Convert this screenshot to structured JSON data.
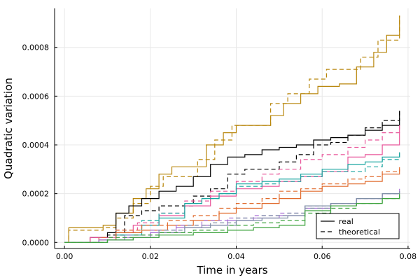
{
  "chart_data": {
    "type": "line",
    "title": "",
    "xlabel": "Time in years",
    "ylabel": "Quadratic variation",
    "xlim": [
      -0.0023,
      0.0805
    ],
    "ylim": [
      -2.5e-05,
      0.00096
    ],
    "xticks": [
      0.0,
      0.02,
      0.04,
      0.06,
      0.08
    ],
    "xtick_labels": [
      "0.00",
      "0.02",
      "0.04",
      "0.06",
      "0.08"
    ],
    "yticks": [
      0.0,
      0.0002,
      0.0004,
      0.0006,
      0.0008
    ],
    "ytick_labels": [
      "0.0000",
      "0.0002",
      "0.0004",
      "0.0006",
      "0.0008"
    ],
    "grid": true,
    "legend": {
      "position": "bottom-right",
      "entries": [
        {
          "label": "real",
          "style": "solid",
          "color": "#000000"
        },
        {
          "label": "theoretical",
          "style": "dashed",
          "color": "#000000"
        }
      ]
    },
    "series": [
      {
        "color": "#b8860b",
        "real": [
          [
            0,
            0
          ],
          [
            0.001,
            6e-05
          ],
          [
            0.009,
            7e-05
          ],
          [
            0.012,
            0.00012
          ],
          [
            0.016,
            0.00018
          ],
          [
            0.019,
            0.00022
          ],
          [
            0.022,
            0.00028
          ],
          [
            0.025,
            0.00031
          ],
          [
            0.029,
            0.00031
          ],
          [
            0.033,
            0.0004
          ],
          [
            0.037,
            0.00045
          ],
          [
            0.04,
            0.00048
          ],
          [
            0.043,
            0.00048
          ],
          [
            0.048,
            0.00052
          ],
          [
            0.051,
            0.00057
          ],
          [
            0.055,
            0.00061
          ],
          [
            0.059,
            0.00064
          ],
          [
            0.064,
            0.00065
          ],
          [
            0.068,
            0.00072
          ],
          [
            0.072,
            0.00078
          ],
          [
            0.075,
            0.00085
          ],
          [
            0.078,
            0.00093
          ]
        ],
        "theoretical": [
          [
            0,
            0
          ],
          [
            0.001,
            5e-05
          ],
          [
            0.009,
            6e-05
          ],
          [
            0.012,
            0.0001
          ],
          [
            0.016,
            0.00016
          ],
          [
            0.02,
            0.00023
          ],
          [
            0.023,
            0.00027
          ],
          [
            0.027,
            0.00027
          ],
          [
            0.031,
            0.00034
          ],
          [
            0.035,
            0.00042
          ],
          [
            0.039,
            0.00048
          ],
          [
            0.044,
            0.00048
          ],
          [
            0.048,
            0.00057
          ],
          [
            0.052,
            0.00061
          ],
          [
            0.057,
            0.00067
          ],
          [
            0.061,
            0.00071
          ],
          [
            0.065,
            0.00071
          ],
          [
            0.069,
            0.00076
          ],
          [
            0.073,
            0.00083
          ],
          [
            0.078,
            0.00093
          ]
        ]
      },
      {
        "color": "#000000",
        "real": [
          [
            0,
            0
          ],
          [
            0.006,
            2e-05
          ],
          [
            0.01,
            4e-05
          ],
          [
            0.012,
            0.00012
          ],
          [
            0.015,
            0.00015
          ],
          [
            0.018,
            0.00018
          ],
          [
            0.022,
            0.00021
          ],
          [
            0.026,
            0.00023
          ],
          [
            0.03,
            0.00027
          ],
          [
            0.034,
            0.00032
          ],
          [
            0.038,
            0.00035
          ],
          [
            0.042,
            0.00036
          ],
          [
            0.046,
            0.00038
          ],
          [
            0.05,
            0.00039
          ],
          [
            0.054,
            0.0004
          ],
          [
            0.058,
            0.00042
          ],
          [
            0.062,
            0.00043
          ],
          [
            0.066,
            0.00044
          ],
          [
            0.07,
            0.00046
          ],
          [
            0.074,
            0.00048
          ],
          [
            0.078,
            0.00054
          ]
        ],
        "theoretical": [
          [
            0,
            0
          ],
          [
            0.006,
            2e-05
          ],
          [
            0.01,
            3e-05
          ],
          [
            0.014,
            0.00011
          ],
          [
            0.018,
            0.00013
          ],
          [
            0.022,
            0.00015
          ],
          [
            0.026,
            0.00015
          ],
          [
            0.03,
            0.00019
          ],
          [
            0.034,
            0.00022
          ],
          [
            0.038,
            0.00028
          ],
          [
            0.042,
            0.0003
          ],
          [
            0.046,
            0.0003
          ],
          [
            0.05,
            0.00033
          ],
          [
            0.054,
            0.00036
          ],
          [
            0.058,
            0.0004
          ],
          [
            0.062,
            0.00041
          ],
          [
            0.066,
            0.00044
          ],
          [
            0.07,
            0.00047
          ],
          [
            0.074,
            0.0005
          ],
          [
            0.078,
            0.00054
          ]
        ]
      },
      {
        "color": "#e8559a",
        "real": [
          [
            0,
            0
          ],
          [
            0.006,
            2e-05
          ],
          [
            0.012,
            4e-05
          ],
          [
            0.016,
            7e-05
          ],
          [
            0.022,
            0.00011
          ],
          [
            0.028,
            0.00015
          ],
          [
            0.034,
            0.00019
          ],
          [
            0.04,
            0.00022
          ],
          [
            0.046,
            0.00023
          ],
          [
            0.05,
            0.00025
          ],
          [
            0.055,
            0.00027
          ],
          [
            0.06,
            0.00029
          ],
          [
            0.066,
            0.00035
          ],
          [
            0.07,
            0.00036
          ],
          [
            0.074,
            0.0004
          ],
          [
            0.078,
            0.00048
          ]
        ],
        "theoretical": [
          [
            0,
            0
          ],
          [
            0.006,
            2e-05
          ],
          [
            0.012,
            5e-05
          ],
          [
            0.017,
            8e-05
          ],
          [
            0.022,
            0.00012
          ],
          [
            0.028,
            0.00017
          ],
          [
            0.034,
            0.00021
          ],
          [
            0.04,
            0.00025
          ],
          [
            0.046,
            0.00028
          ],
          [
            0.05,
            0.0003
          ],
          [
            0.055,
            0.00034
          ],
          [
            0.06,
            0.00036
          ],
          [
            0.066,
            0.00039
          ],
          [
            0.07,
            0.00042
          ],
          [
            0.074,
            0.00045
          ],
          [
            0.078,
            0.00048
          ]
        ]
      },
      {
        "color": "#19a5a0",
        "real": [
          [
            0,
            0
          ],
          [
            0.008,
            1e-05
          ],
          [
            0.012,
            3e-05
          ],
          [
            0.018,
            7e-05
          ],
          [
            0.022,
            0.0001
          ],
          [
            0.028,
            0.00016
          ],
          [
            0.032,
            0.00018
          ],
          [
            0.036,
            0.0002
          ],
          [
            0.04,
            0.00024
          ],
          [
            0.046,
            0.00025
          ],
          [
            0.05,
            0.00026
          ],
          [
            0.055,
            0.00028
          ],
          [
            0.06,
            0.0003
          ],
          [
            0.066,
            0.00032
          ],
          [
            0.07,
            0.00033
          ],
          [
            0.074,
            0.00035
          ],
          [
            0.078,
            0.00037
          ]
        ],
        "theoretical": [
          [
            0,
            0
          ],
          [
            0.008,
            1e-05
          ],
          [
            0.012,
            4e-05
          ],
          [
            0.018,
            9e-05
          ],
          [
            0.022,
            0.00012
          ],
          [
            0.028,
            0.00016
          ],
          [
            0.032,
            0.00018
          ],
          [
            0.036,
            0.0002
          ],
          [
            0.04,
            0.00023
          ],
          [
            0.046,
            0.00024
          ],
          [
            0.05,
            0.00025
          ],
          [
            0.055,
            0.00027
          ],
          [
            0.06,
            0.00029
          ],
          [
            0.066,
            0.00029
          ],
          [
            0.07,
            0.00031
          ],
          [
            0.074,
            0.00034
          ],
          [
            0.078,
            0.00037
          ]
        ]
      },
      {
        "color": "#e06a2c",
        "real": [
          [
            0,
            0
          ],
          [
            0.008,
            1e-05
          ],
          [
            0.012,
            4e-05
          ],
          [
            0.018,
            5e-05
          ],
          [
            0.024,
            7e-05
          ],
          [
            0.03,
            9e-05
          ],
          [
            0.036,
            0.00012
          ],
          [
            0.04,
            0.00014
          ],
          [
            0.046,
            0.00016
          ],
          [
            0.05,
            0.00018
          ],
          [
            0.055,
            0.00021
          ],
          [
            0.06,
            0.00023
          ],
          [
            0.066,
            0.00024
          ],
          [
            0.07,
            0.00025
          ],
          [
            0.074,
            0.00028
          ],
          [
            0.078,
            0.0003
          ]
        ],
        "theoretical": [
          [
            0,
            0
          ],
          [
            0.008,
            2e-05
          ],
          [
            0.012,
            5e-05
          ],
          [
            0.018,
            7e-05
          ],
          [
            0.024,
            9e-05
          ],
          [
            0.03,
            0.00011
          ],
          [
            0.036,
            0.00014
          ],
          [
            0.04,
            0.00016
          ],
          [
            0.046,
            0.00018
          ],
          [
            0.05,
            0.00021
          ],
          [
            0.055,
            0.00022
          ],
          [
            0.06,
            0.00024
          ],
          [
            0.066,
            0.00026
          ],
          [
            0.07,
            0.00027
          ],
          [
            0.074,
            0.00029
          ],
          [
            0.078,
            0.00031
          ]
        ]
      },
      {
        "color": "#a86fd4",
        "real": [
          [
            0,
            0
          ],
          [
            0.008,
            1e-05
          ],
          [
            0.014,
            2e-05
          ],
          [
            0.02,
            4e-05
          ],
          [
            0.026,
            6e-05
          ],
          [
            0.032,
            7e-05
          ],
          [
            0.038,
            9e-05
          ],
          [
            0.044,
            0.0001
          ],
          [
            0.05,
            0.00011
          ],
          [
            0.056,
            0.00014
          ],
          [
            0.062,
            0.00016
          ],
          [
            0.068,
            0.00018
          ],
          [
            0.074,
            0.0002
          ],
          [
            0.078,
            0.00021
          ]
        ],
        "theoretical": [
          [
            0,
            0
          ],
          [
            0.008,
            1e-05
          ],
          [
            0.014,
            3e-05
          ],
          [
            0.02,
            5e-05
          ],
          [
            0.026,
            7e-05
          ],
          [
            0.032,
            9e-05
          ],
          [
            0.038,
            0.0001
          ],
          [
            0.044,
            0.00011
          ],
          [
            0.05,
            0.00012
          ],
          [
            0.056,
            0.00015
          ],
          [
            0.062,
            0.00016
          ],
          [
            0.068,
            0.00018
          ],
          [
            0.074,
            0.0002
          ],
          [
            0.078,
            0.00022
          ]
        ]
      },
      {
        "color": "#7f8fa6",
        "real": [
          [
            0,
            0
          ],
          [
            0.01,
            1e-05
          ],
          [
            0.016,
            2e-05
          ],
          [
            0.022,
            4e-05
          ],
          [
            0.028,
            6e-05
          ],
          [
            0.034,
            7e-05
          ],
          [
            0.04,
            9e-05
          ],
          [
            0.046,
            0.0001
          ],
          [
            0.052,
            0.00011
          ],
          [
            0.056,
            0.00015
          ],
          [
            0.062,
            0.00016
          ],
          [
            0.068,
            0.00018
          ],
          [
            0.074,
            0.0002
          ],
          [
            0.078,
            0.00021
          ]
        ],
        "theoretical": [
          [
            0,
            0
          ],
          [
            0.01,
            2e-05
          ],
          [
            0.016,
            3e-05
          ],
          [
            0.022,
            5e-05
          ],
          [
            0.028,
            7e-05
          ],
          [
            0.034,
            8e-05
          ],
          [
            0.04,
            0.0001
          ],
          [
            0.046,
            0.00011
          ],
          [
            0.052,
            0.00012
          ],
          [
            0.056,
            0.00014
          ],
          [
            0.062,
            0.00016
          ],
          [
            0.068,
            0.00018
          ],
          [
            0.074,
            0.0002
          ],
          [
            0.078,
            0.00021
          ]
        ]
      },
      {
        "color": "#3ea33e",
        "real": [
          [
            0,
            0
          ],
          [
            0.01,
            1e-05
          ],
          [
            0.016,
            2e-05
          ],
          [
            0.022,
            3e-05
          ],
          [
            0.03,
            4e-05
          ],
          [
            0.038,
            5e-05
          ],
          [
            0.044,
            6e-05
          ],
          [
            0.05,
            7e-05
          ],
          [
            0.055,
            7e-05
          ],
          [
            0.056,
            0.00013
          ],
          [
            0.062,
            0.00015
          ],
          [
            0.068,
            0.00016
          ],
          [
            0.074,
            0.00018
          ],
          [
            0.078,
            0.0002
          ]
        ],
        "theoretical": [
          [
            0,
            0
          ],
          [
            0.01,
            2e-05
          ],
          [
            0.016,
            3e-05
          ],
          [
            0.022,
            4e-05
          ],
          [
            0.03,
            5e-05
          ],
          [
            0.038,
            7e-05
          ],
          [
            0.044,
            8e-05
          ],
          [
            0.05,
            9e-05
          ],
          [
            0.056,
            0.00012
          ],
          [
            0.062,
            0.00014
          ],
          [
            0.068,
            0.00016
          ],
          [
            0.074,
            0.00018
          ],
          [
            0.078,
            0.0002
          ]
        ]
      }
    ]
  }
}
